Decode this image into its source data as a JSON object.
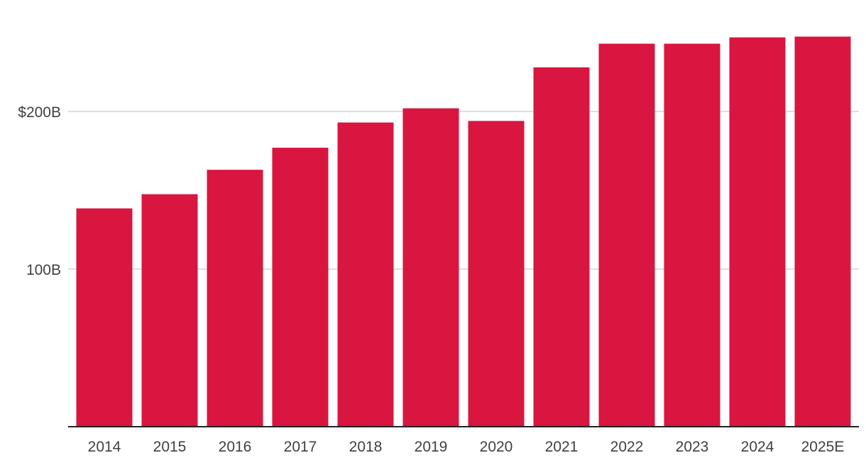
{
  "chart_data": {
    "type": "bar",
    "title": "",
    "xlabel": "",
    "ylabel": "",
    "categories": [
      "2014",
      "2015",
      "2016",
      "2017",
      "2018",
      "2019",
      "2020",
      "2021",
      "2022",
      "2023",
      "2024",
      "2025E"
    ],
    "values": [
      138.5,
      147.5,
      163,
      177,
      193,
      202,
      194,
      228,
      243,
      243,
      247,
      247.5
    ],
    "ylim": [
      0,
      250
    ],
    "yticks": [
      {
        "value": 100,
        "label": "100B"
      },
      {
        "value": 200,
        "label": "$200B"
      }
    ],
    "grid": true,
    "bar_color": "#d8163f",
    "gridline_color": "#d4d4d4",
    "baseline_color": "#222222",
    "text_color": "#404040"
  }
}
